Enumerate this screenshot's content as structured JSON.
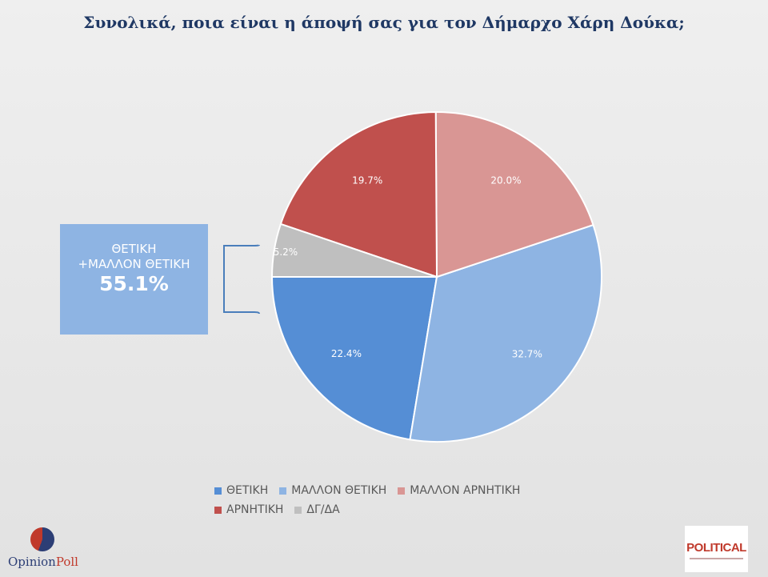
{
  "title": "Συνολικά, ποια είναι η άποψή σας για τον Δήμαρχο Χάρη Δούκα;",
  "summary": {
    "line1": "ΘΕΤΙΚΗ",
    "line2": "+ΜΑΛΛΟΝ ΘΕΤΙΚΗ",
    "value": "55.1%"
  },
  "chart_data": {
    "type": "pie",
    "title": "Συνολικά, ποια είναι η άποψή σας για τον Δήμαρχο Χάρη Δούκα;",
    "categories": [
      "ΘΕΤΙΚΗ",
      "ΜΑΛΛΟΝ ΘΕΤΙΚΗ",
      "ΜΑΛΛΟΝ ΑΡΝΗΤΙΚΗ",
      "ΑΡΝΗΤΙΚΗ",
      "ΔΓ/ΔΑ"
    ],
    "values": [
      22.4,
      32.7,
      20.0,
      19.7,
      5.2
    ],
    "labels": [
      "22.4%",
      "32.7%",
      "20.0%",
      "19.7%",
      "5.2%"
    ],
    "colors": [
      "#558ed5",
      "#8eb4e3",
      "#d99694",
      "#c0504d",
      "#bfbfbf"
    ],
    "legend_position": "bottom"
  },
  "legend": {
    "rows": [
      [
        {
          "label": "ΘΕΤΙΚΗ",
          "color": "#558ed5"
        },
        {
          "label": "ΜΑΛΛΟΝ ΘΕΤΙΚΗ",
          "color": "#8eb4e3"
        },
        {
          "label": "ΜΑΛΛΟΝ ΑΡΝΗΤΙΚΗ",
          "color": "#d99694"
        }
      ],
      [
        {
          "label": "ΑΡΝΗΤΙΚΗ",
          "color": "#c0504d"
        },
        {
          "label": "ΔΓ/ΔΑ",
          "color": "#bfbfbf"
        }
      ]
    ]
  },
  "logos": {
    "left": {
      "part1": "Opinion",
      "part2": "Poll"
    },
    "right": {
      "text": "POLITICAL"
    }
  }
}
